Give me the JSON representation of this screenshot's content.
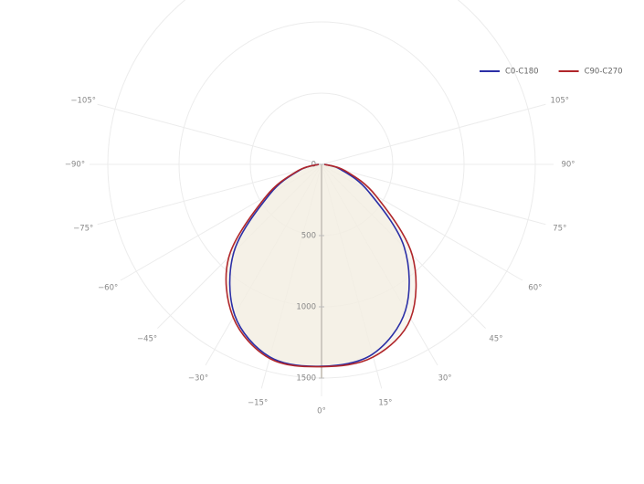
{
  "chart_data": {
    "type": "polar",
    "theta": [
      -90,
      -75,
      -60,
      -45,
      -30,
      -15,
      0,
      15,
      30,
      45,
      60,
      75,
      90
    ],
    "series": [
      {
        "name": "C0-C180",
        "color": "#2b2fa6",
        "values": [
          20,
          160,
          420,
          870,
          1220,
          1400,
          1417,
          1380,
          1180,
          820,
          380,
          140,
          20
        ]
      },
      {
        "name": "C90-C270",
        "color": "#b0262a",
        "values": [
          20,
          170,
          450,
          920,
          1240,
          1410,
          1420,
          1400,
          1250,
          900,
          440,
          170,
          20
        ]
      }
    ],
    "rlim": [
      0,
      1500
    ],
    "rticks": [
      0,
      500,
      1000,
      1500
    ],
    "thetaticks": [
      {
        "value": -105,
        "label": "−105°"
      },
      {
        "value": -90,
        "label": "−90°"
      },
      {
        "value": -75,
        "label": "−75°"
      },
      {
        "value": -60,
        "label": "−60°"
      },
      {
        "value": -45,
        "label": "−45°"
      },
      {
        "value": -30,
        "label": "−30°"
      },
      {
        "value": -15,
        "label": "−15°"
      },
      {
        "value": 0,
        "label": "0°"
      },
      {
        "value": 15,
        "label": "15°"
      },
      {
        "value": 30,
        "label": "30°"
      },
      {
        "value": 45,
        "label": "45°"
      },
      {
        "value": 60,
        "label": "60°"
      },
      {
        "value": 75,
        "label": "75°"
      },
      {
        "value": 90,
        "label": "90°"
      },
      {
        "value": 105,
        "label": "105°"
      }
    ],
    "legend": "top-right"
  }
}
